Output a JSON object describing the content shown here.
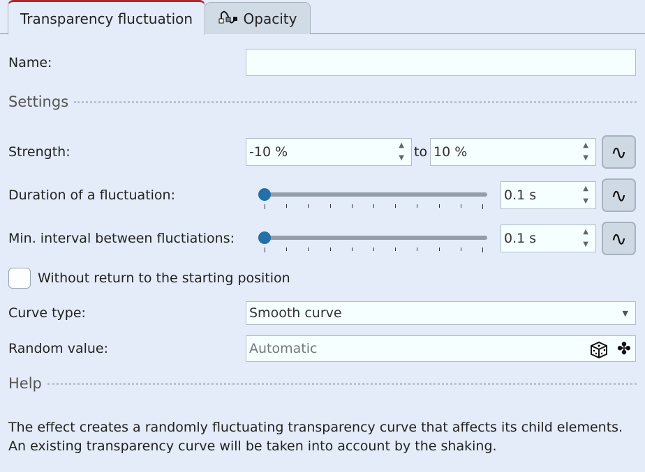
{
  "tabs": [
    {
      "label": "Transparency fluctuation",
      "active": true
    },
    {
      "label": "Opacity",
      "icon": "waveform-keyframe-icon"
    }
  ],
  "name": {
    "label": "Name:",
    "value": ""
  },
  "settings": {
    "title": "Settings"
  },
  "strength": {
    "label": "Strength:",
    "from": "-10 %",
    "to_label": "to",
    "to": "10 %"
  },
  "duration": {
    "label": "Duration of a fluctuation:",
    "value": "0.1 s",
    "slider_fraction": 0
  },
  "interval": {
    "label": "Min. interval between fluctiations:",
    "value": "0.1 s",
    "slider_fraction": 0
  },
  "no_return": {
    "label": "Without return to the starting position",
    "checked": false
  },
  "curve": {
    "label": "Curve type:",
    "value": "Smooth curve"
  },
  "random": {
    "label": "Random value:",
    "placeholder": "Automatic",
    "icons": [
      "dice-icon",
      "clover-icon"
    ]
  },
  "help": {
    "title": "Help",
    "text": "The effect creates a randomly fluctuating transparency curve that affects its child elements. An existing transparency curve will be taken into account by the shaking."
  },
  "colors": {
    "accent": "#b0282a",
    "slider_thumb": "#2470a8",
    "background": "#e3ecf8"
  }
}
